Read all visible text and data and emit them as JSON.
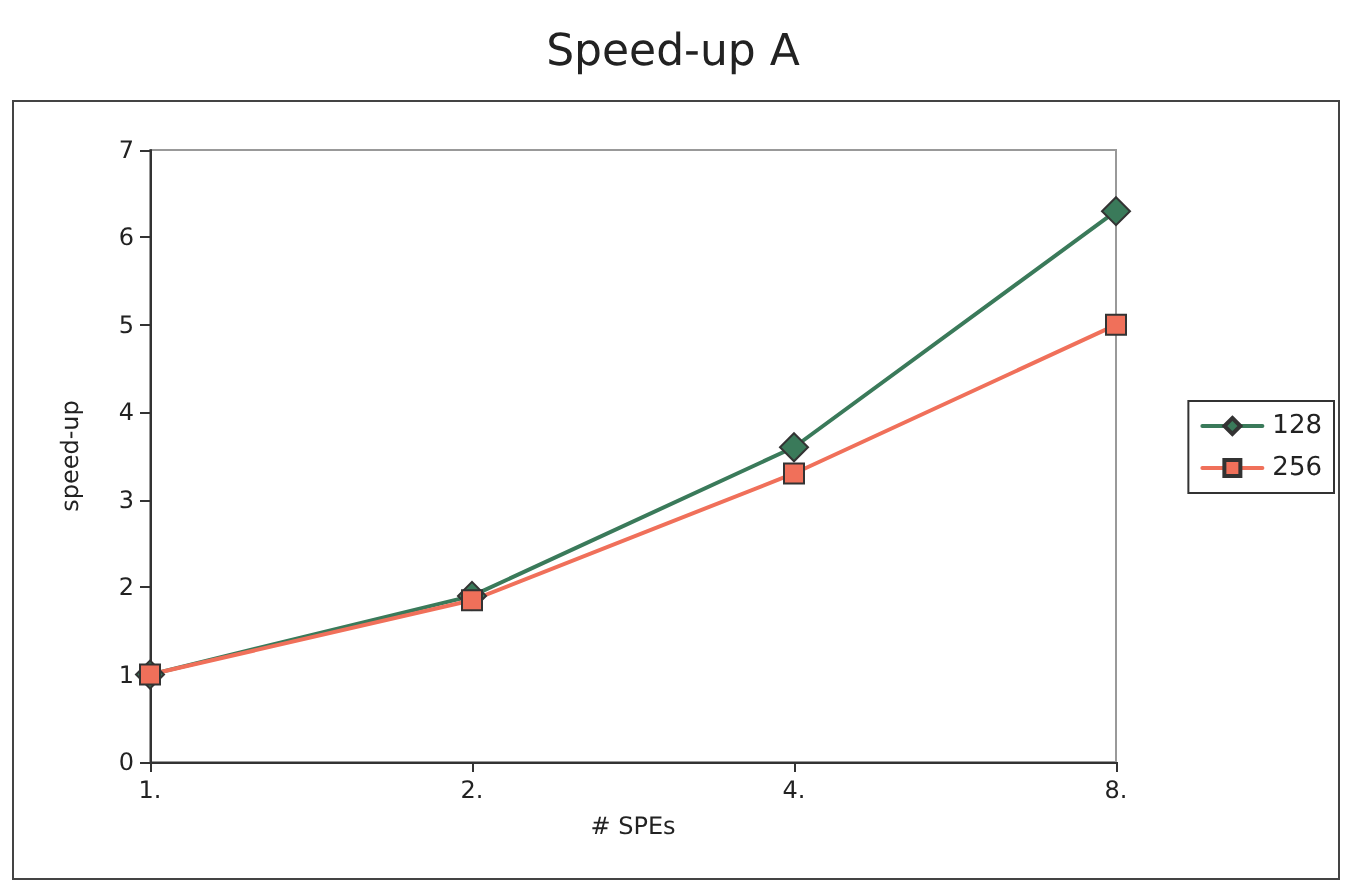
{
  "chart_data": {
    "type": "line",
    "title": "Speed-up A",
    "xlabel": "# SPEs",
    "ylabel": "speed-up",
    "categories": [
      "1.",
      "2.",
      "4.",
      "8."
    ],
    "series": [
      {
        "name": "128",
        "color": "#3a7a5a",
        "marker": "diamond",
        "values": [
          1,
          1.9,
          3.6,
          6.3
        ]
      },
      {
        "name": "256",
        "color": "#f0705a",
        "marker": "square",
        "values": [
          1,
          1.85,
          3.3,
          5.0
        ]
      }
    ],
    "ylim": [
      0,
      7
    ],
    "yticks": [
      0,
      1,
      2,
      3,
      4,
      5,
      6,
      7
    ],
    "grid": false,
    "legend": "right",
    "line_style": "solid"
  }
}
